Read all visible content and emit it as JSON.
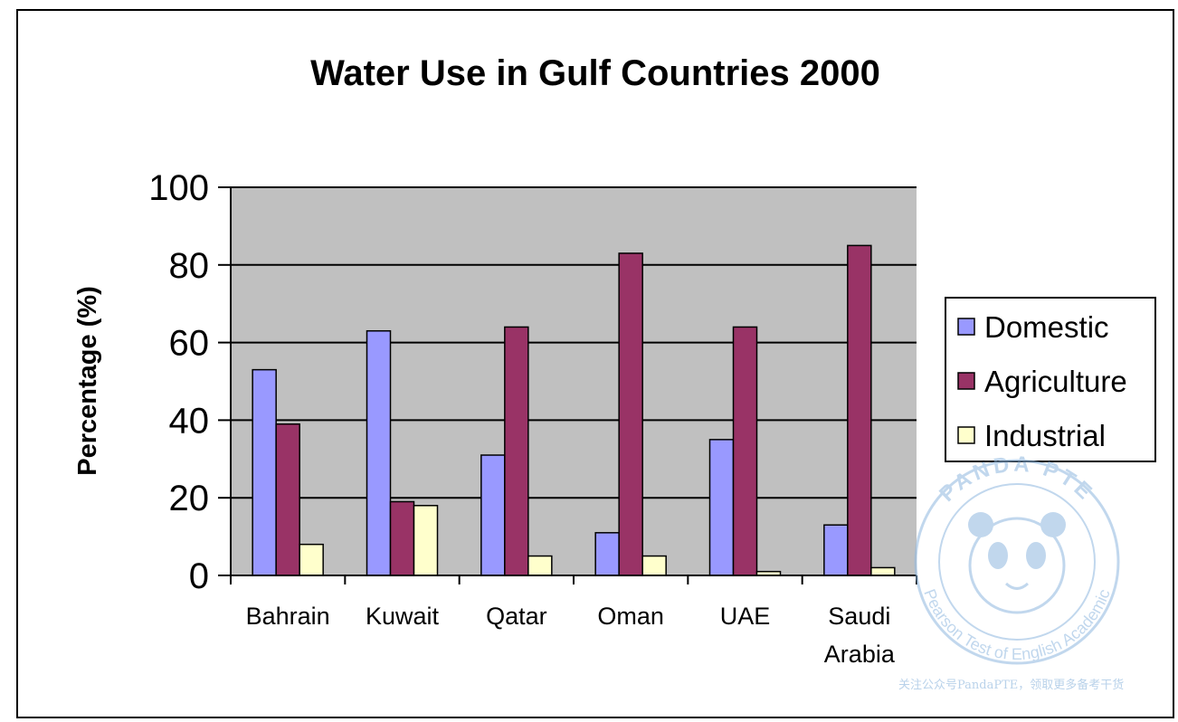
{
  "chart_data": {
    "type": "bar",
    "title": "Water Use in Gulf Countries 2000",
    "xlabel": "",
    "ylabel": "Percentage (%)",
    "ylim": [
      0,
      100
    ],
    "yticks": [
      "0",
      "20",
      "40",
      "60",
      "80",
      "100"
    ],
    "categories": [
      [
        "Bahrain"
      ],
      [
        "Kuwait"
      ],
      [
        "Qatar"
      ],
      [
        "Oman"
      ],
      [
        "UAE"
      ],
      [
        "Saudi",
        "Arabia"
      ]
    ],
    "series": [
      {
        "name": "Domestic",
        "color": "#9999ff",
        "values": [
          53,
          63,
          31,
          11,
          35,
          13
        ]
      },
      {
        "name": "Agriculture",
        "color": "#993366",
        "values": [
          39,
          19,
          64,
          83,
          64,
          85
        ]
      },
      {
        "name": "Industrial",
        "color": "#ffffcc",
        "values": [
          8,
          18,
          5,
          5,
          1,
          2
        ]
      }
    ],
    "grid": true,
    "plot_background": "#c0c0c0",
    "legend_position": "right"
  },
  "watermark": {
    "badge_top_text": "PANDA PTE",
    "badge_bottom_text": "Pearson Test of English Academic",
    "note": "关注公众号PandaPTE，领取更多备考干货"
  }
}
